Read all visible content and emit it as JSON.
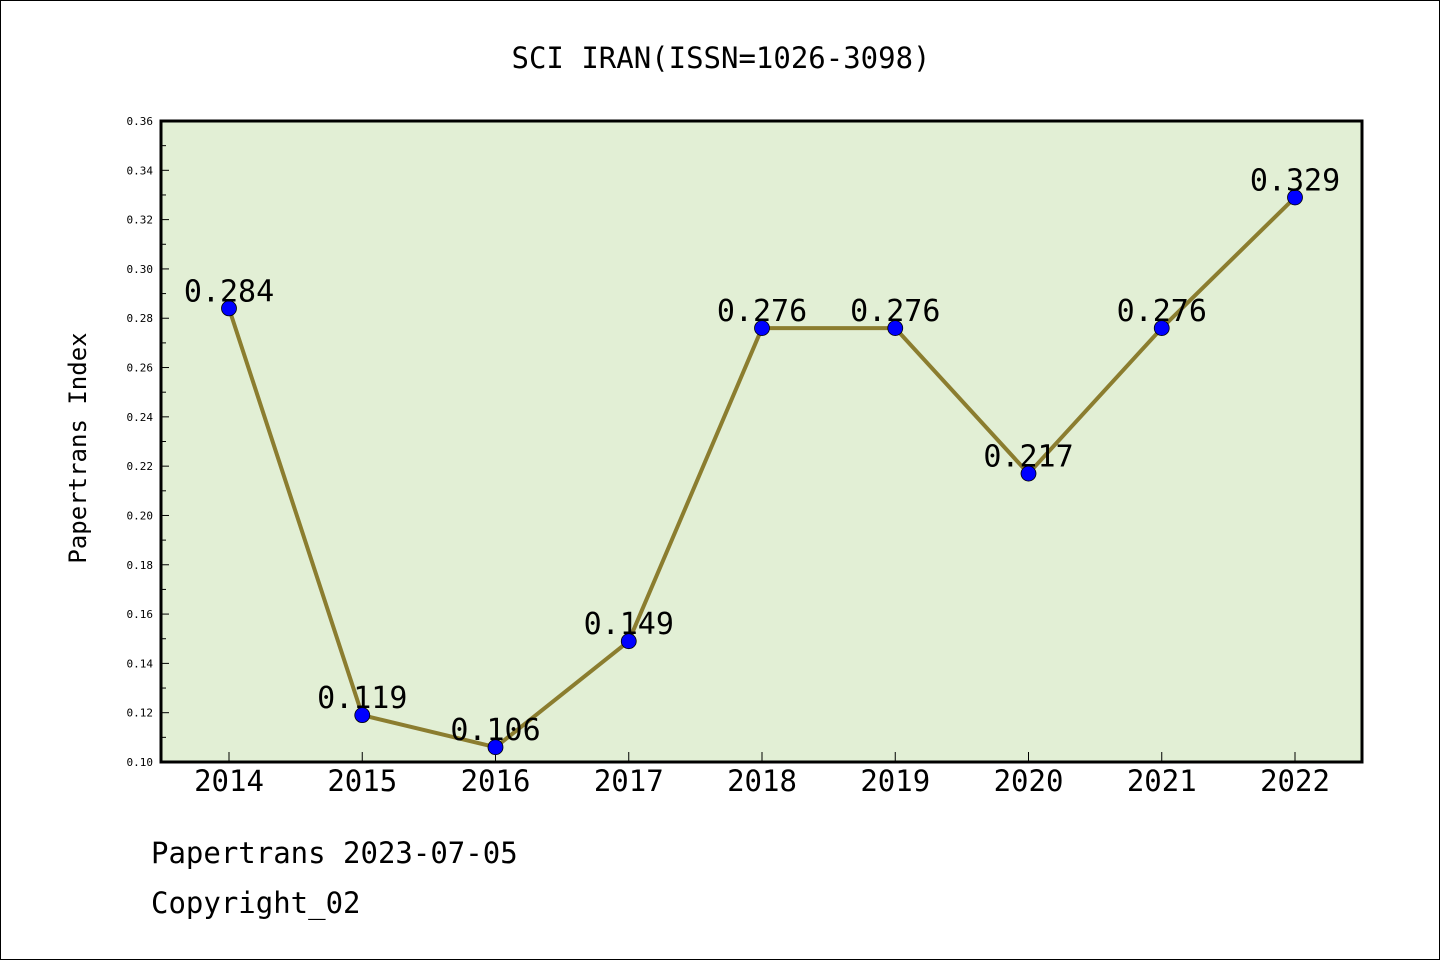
{
  "chart_data": {
    "type": "line",
    "title": "SCI IRAN(ISSN=1026-3098)",
    "xlabel": "",
    "ylabel": "Papertrans Index",
    "categories": [
      "2014",
      "2015",
      "2016",
      "2017",
      "2018",
      "2019",
      "2020",
      "2021",
      "2022"
    ],
    "series": [
      {
        "values": [
          0.284,
          0.119,
          0.106,
          0.149,
          0.276,
          0.276,
          0.217,
          0.276,
          0.329
        ]
      }
    ],
    "data_labels": [
      "0.284",
      "0.119",
      "0.106",
      "0.149",
      "0.276",
      "0.276",
      "0.217",
      "0.276",
      "0.329"
    ],
    "ylim": [
      0.1,
      0.36
    ],
    "y_ticks": [
      "0.10",
      "0.12",
      "0.14",
      "0.16",
      "0.18",
      "0.20",
      "0.22",
      "0.24",
      "0.26",
      "0.28",
      "0.30",
      "0.32",
      "0.34",
      "0.36"
    ],
    "grid": false,
    "legend": "none",
    "colors": {
      "plot_background": "#e2efd5",
      "line": "#8b7d2f",
      "marker": "#0000ff",
      "text": "#000000"
    }
  },
  "footer": {
    "source": "Papertrans 2023-07-05",
    "copyright": "Copyright_02"
  }
}
